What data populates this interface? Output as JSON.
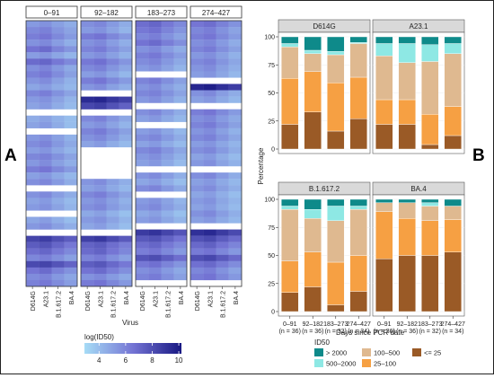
{
  "panel_letters": {
    "left": "A",
    "right": "B"
  },
  "chart_data": [
    {
      "type": "heatmap",
      "panels": [
        "0–91",
        "92–182",
        "183–273",
        "274–427"
      ],
      "columns": [
        "D614G",
        "A23.1",
        "B.1.617.2",
        "BA.4"
      ],
      "xlabel": "Virus",
      "legend_title": "log(ID50)",
      "colorbar_ticks": [
        4,
        6,
        8,
        10
      ],
      "colorbar_range": [
        2.9,
        10.2
      ],
      "colors": {
        "low": "#a6dcf6",
        "mid": "#7474d4",
        "high": "#171782"
      },
      "notes": "White rows = missing values",
      "values": [
        [
          [
            5.2,
            5.5,
            5.0,
            4.6
          ],
          [
            5.8,
            6.1,
            5.4,
            4.9
          ],
          [
            6.2,
            6.5,
            5.8,
            5.2
          ],
          [
            5.5,
            5.8,
            5.1,
            4.5
          ],
          [
            6.6,
            6.9,
            6.0,
            5.4
          ],
          [
            5.1,
            5.4,
            4.8,
            4.3
          ],
          [
            6.9,
            7.1,
            6.4,
            5.8
          ],
          [
            5.6,
            6.0,
            5.3,
            4.7
          ],
          [
            6.1,
            6.4,
            5.7,
            5.0
          ],
          [
            5.4,
            5.7,
            5.0,
            4.4
          ],
          [
            4.8,
            5.1,
            4.6,
            4.2
          ],
          [
            5.9,
            6.2,
            5.5,
            4.9
          ],
          [
            5.2,
            5.5,
            4.9,
            4.3
          ],
          [
            4.9,
            5.2,
            4.6,
            4.1
          ],
          null,
          [
            4.6,
            4.9,
            4.4,
            4.0
          ],
          [
            4.9,
            5.2,
            4.6,
            4.0
          ],
          null,
          [
            5.3,
            5.6,
            5.0,
            4.4
          ],
          [
            5.7,
            6.0,
            5.3,
            4.7
          ],
          [
            5.1,
            5.4,
            4.8,
            4.3
          ],
          [
            5.9,
            6.1,
            5.5,
            4.9
          ],
          [
            5.3,
            5.7,
            5.0,
            4.5
          ],
          [
            6.2,
            6.5,
            5.8,
            5.2
          ],
          [
            5.0,
            5.3,
            4.7,
            4.2
          ],
          [
            5.6,
            5.9,
            5.2,
            4.6
          ],
          null,
          [
            5.5,
            5.8,
            5.1,
            4.6
          ],
          [
            4.9,
            5.2,
            4.6,
            4.1
          ],
          [
            5.2,
            5.5,
            4.9,
            4.3
          ],
          null,
          [
            4.8,
            5.1,
            4.5,
            4.0
          ],
          [
            5.3,
            5.6,
            5.0,
            4.5
          ],
          null,
          [
            8.4,
            8.7,
            8.0,
            7.5
          ],
          [
            7.5,
            7.8,
            7.1,
            6.4
          ],
          [
            6.8,
            7.1,
            6.4,
            5.8
          ],
          [
            5.9,
            6.2,
            5.6,
            5.0
          ],
          [
            8.2,
            8.4,
            7.8,
            7.2
          ],
          [
            6.5,
            6.9,
            6.1,
            5.5
          ],
          [
            5.7,
            6.0,
            5.3,
            4.8
          ],
          [
            6.1,
            6.4,
            5.7,
            5.1
          ]
        ],
        [
          [
            5.6,
            5.9,
            5.2,
            4.6
          ],
          [
            5.2,
            5.5,
            4.9,
            4.3
          ],
          [
            6.3,
            6.6,
            5.9,
            5.3
          ],
          [
            5.5,
            5.8,
            5.1,
            4.5
          ],
          [
            6.0,
            6.3,
            5.6,
            5.0
          ],
          [
            5.3,
            5.6,
            5.0,
            4.4
          ],
          [
            6.4,
            6.7,
            6.0,
            5.4
          ],
          [
            5.8,
            6.1,
            5.4,
            4.8
          ],
          [
            5.1,
            5.4,
            4.8,
            4.2
          ],
          [
            6.2,
            6.5,
            5.8,
            5.2
          ],
          [
            5.4,
            5.7,
            5.0,
            4.5
          ],
          null,
          [
            9.4,
            9.6,
            9.0,
            8.6
          ],
          [
            8.3,
            8.6,
            7.9,
            7.3
          ],
          null,
          [
            5.8,
            6.1,
            5.4,
            4.8
          ],
          [
            5.2,
            5.5,
            4.9,
            4.3
          ],
          [
            6.0,
            6.3,
            5.6,
            5.0
          ],
          [
            5.5,
            5.8,
            5.2,
            4.6
          ],
          [
            4.9,
            5.2,
            4.6,
            4.1
          ],
          null,
          null,
          null,
          null,
          null,
          [
            5.4,
            5.7,
            5.0,
            4.5
          ],
          [
            5.0,
            5.3,
            4.7,
            4.2
          ],
          [
            5.9,
            6.2,
            5.5,
            4.9
          ],
          [
            5.3,
            5.6,
            5.0,
            4.4
          ],
          [
            5.6,
            5.9,
            5.2,
            4.7
          ],
          [
            4.7,
            5.0,
            4.4,
            3.9
          ],
          [
            5.2,
            5.5,
            4.9,
            4.3
          ],
          [
            4.8,
            5.1,
            4.5,
            4.0
          ],
          null,
          [
            8.6,
            8.9,
            8.2,
            7.6
          ],
          [
            7.2,
            7.5,
            6.8,
            6.2
          ],
          [
            6.9,
            7.2,
            6.5,
            5.9
          ],
          [
            6.0,
            6.3,
            5.6,
            5.0
          ],
          [
            7.4,
            7.7,
            7.0,
            6.4
          ],
          [
            6.6,
            6.9,
            6.2,
            5.6
          ],
          [
            5.5,
            5.8,
            5.2,
            4.7
          ],
          [
            6.3,
            6.6,
            5.9,
            5.3
          ]
        ],
        [
          [
            6.8,
            7.1,
            6.4,
            5.8
          ],
          [
            6.4,
            6.7,
            6.0,
            5.4
          ],
          [
            5.9,
            6.2,
            5.5,
            4.9
          ],
          [
            6.6,
            6.9,
            6.2,
            5.6
          ],
          [
            5.5,
            5.8,
            5.1,
            4.6
          ],
          [
            6.1,
            6.4,
            5.7,
            5.1
          ],
          [
            5.7,
            6.0,
            5.3,
            4.7
          ],
          [
            5.2,
            5.5,
            4.9,
            4.3
          ],
          null,
          [
            6.0,
            6.3,
            5.6,
            5.0
          ],
          [
            5.4,
            5.7,
            5.0,
            4.5
          ],
          [
            5.9,
            6.1,
            5.5,
            4.9
          ],
          [
            5.3,
            5.6,
            5.0,
            4.4
          ],
          null,
          [
            5.6,
            5.9,
            5.2,
            4.6
          ],
          [
            5.0,
            5.3,
            4.7,
            4.2
          ],
          null,
          [
            5.1,
            5.4,
            4.8,
            4.2
          ],
          [
            5.6,
            5.9,
            5.2,
            4.6
          ],
          [
            4.9,
            5.2,
            4.6,
            4.1
          ],
          [
            5.8,
            6.1,
            5.4,
            4.8
          ],
          [
            5.3,
            5.6,
            5.0,
            4.4
          ],
          [
            5.0,
            5.3,
            4.7,
            4.1
          ],
          null,
          [
            5.4,
            5.7,
            5.1,
            4.5
          ],
          [
            4.8,
            5.1,
            4.5,
            4.0
          ],
          [
            5.7,
            6.0,
            5.3,
            4.7
          ],
          null,
          [
            5.2,
            5.5,
            4.9,
            4.3
          ],
          [
            5.5,
            5.8,
            5.1,
            4.6
          ],
          [
            4.7,
            5.0,
            4.4,
            3.9
          ],
          [
            5.1,
            5.4,
            4.8,
            4.3
          ],
          null,
          [
            8.8,
            9.1,
            8.4,
            7.8
          ],
          [
            7.6,
            7.9,
            7.2,
            6.6
          ],
          [
            6.8,
            7.1,
            6.4,
            5.8
          ],
          [
            6.2,
            6.5,
            5.8,
            5.2
          ],
          [
            7.8,
            8.1,
            7.4,
            6.8
          ],
          [
            6.4,
            6.7,
            6.0,
            5.4
          ],
          [
            5.6,
            5.9,
            5.2,
            4.7
          ],
          [
            6.0,
            6.3,
            5.6,
            5.0
          ]
        ],
        [
          [
            6.5,
            6.8,
            6.1,
            5.5
          ],
          [
            5.9,
            6.2,
            5.5,
            4.9
          ],
          [
            6.2,
            6.5,
            5.8,
            5.2
          ],
          [
            5.6,
            5.9,
            5.2,
            4.6
          ],
          [
            6.0,
            6.3,
            5.6,
            5.0
          ],
          [
            5.3,
            5.6,
            5.0,
            4.4
          ],
          [
            5.8,
            6.1,
            5.4,
            4.8
          ],
          [
            5.4,
            5.7,
            5.0,
            4.5
          ],
          [
            5.1,
            5.4,
            4.8,
            4.2
          ],
          null,
          [
            9.6,
            9.9,
            9.2,
            8.7
          ],
          [
            5.5,
            5.8,
            5.1,
            4.6
          ],
          [
            5.0,
            5.3,
            4.7,
            4.2
          ],
          null,
          [
            6.2,
            6.5,
            5.8,
            5.2
          ],
          [
            5.6,
            5.9,
            5.2,
            4.7
          ],
          [
            6.0,
            6.3,
            5.6,
            5.0
          ],
          [
            5.4,
            5.7,
            5.0,
            4.4
          ],
          [
            5.8,
            6.1,
            5.4,
            4.8
          ],
          [
            5.1,
            5.4,
            4.8,
            4.3
          ],
          [
            5.6,
            5.9,
            5.2,
            4.6
          ],
          [
            4.9,
            5.2,
            4.6,
            4.1
          ],
          [
            5.3,
            5.6,
            4.9,
            4.4
          ],
          null,
          [
            5.6,
            5.9,
            5.2,
            4.6
          ],
          [
            5.0,
            5.3,
            4.7,
            4.2
          ],
          [
            5.4,
            5.7,
            5.0,
            4.5
          ],
          [
            4.8,
            5.1,
            4.5,
            4.0
          ],
          [
            5.2,
            5.5,
            4.8,
            4.3
          ],
          [
            4.9,
            5.2,
            4.6,
            4.1
          ],
          [
            5.5,
            5.8,
            5.1,
            4.5
          ],
          [
            5.0,
            5.3,
            4.7,
            4.2
          ],
          null,
          [
            9.2,
            9.5,
            8.8,
            8.2
          ],
          [
            7.9,
            8.2,
            7.5,
            6.9
          ],
          [
            7.0,
            7.3,
            6.6,
            6.0
          ],
          [
            6.3,
            6.6,
            5.9,
            5.3
          ],
          [
            8.0,
            8.3,
            7.6,
            7.0
          ],
          [
            6.7,
            7.0,
            6.3,
            5.7
          ],
          [
            5.9,
            6.2,
            5.5,
            4.9
          ],
          [
            6.3,
            6.6,
            5.9,
            5.3
          ]
        ]
      ]
    },
    {
      "type": "bar",
      "stacked": true,
      "panels": [
        "D614G",
        "A23.1",
        "B.1.617.2",
        "BA.4"
      ],
      "categories": [
        "0–91",
        "92–182",
        "183–273",
        "274–427"
      ],
      "category_n": [
        "(n = 36)",
        "(n = 36)",
        "(n = 32)",
        "(n = 34)"
      ],
      "xlabel": "Days since PCR date",
      "ylabel": "Percentage",
      "ylim": [
        0,
        100
      ],
      "yticks": [
        0,
        25,
        50,
        75,
        100
      ],
      "legend_title": "ID50",
      "legend_order": [
        "> 2000",
        "100–500",
        "<= 25",
        "500–2000",
        "25–100"
      ],
      "stack_order": [
        "<= 25",
        "25–100",
        "100–500",
        "500–2000",
        "> 2000"
      ],
      "stack_colors": {
        "> 2000": "#0e8a8a",
        "500–2000": "#8ee8e4",
        "100–500": "#dfb990",
        "25–100": "#f6a043",
        "<= 25": "#9a5a26"
      },
      "series": {
        "D614G": [
          {
            "name": "<= 25",
            "values": [
              22,
              33,
              16,
              27
            ]
          },
          {
            "name": "25–100",
            "values": [
              41,
              36,
              43,
              37
            ]
          },
          {
            "name": "100–500",
            "values": [
              28,
              16,
              25,
              30
            ]
          },
          {
            "name": "500–2000",
            "values": [
              3,
              3,
              3,
              1
            ]
          },
          {
            "name": "> 2000",
            "values": [
              6,
              12,
              13,
              5
            ]
          }
        ],
        "A23.1": [
          {
            "name": "<= 25",
            "values": [
              22,
              22,
              4,
              12
            ]
          },
          {
            "name": "25–100",
            "values": [
              22,
              22,
              27,
              26
            ]
          },
          {
            "name": "100–500",
            "values": [
              39,
              33,
              47,
              47
            ]
          },
          {
            "name": "500–2000",
            "values": [
              11,
              17,
              15,
              9
            ]
          },
          {
            "name": "> 2000",
            "values": [
              6,
              6,
              7,
              6
            ]
          }
        ],
        "B.1.617.2": [
          {
            "name": "<= 25",
            "values": [
              17,
              22,
              6,
              18
            ]
          },
          {
            "name": "25–100",
            "values": [
              28,
              31,
              38,
              32
            ]
          },
          {
            "name": "100–500",
            "values": [
              46,
              30,
              37,
              41
            ]
          },
          {
            "name": "500–2000",
            "values": [
              3,
              8,
              13,
              3
            ]
          },
          {
            "name": "> 2000",
            "values": [
              6,
              9,
              6,
              6
            ]
          }
        ],
        "BA.4": [
          {
            "name": "<= 25",
            "values": [
              47,
              50,
              50,
              53
            ]
          },
          {
            "name": "25–100",
            "values": [
              42,
              33,
              31,
              29
            ]
          },
          {
            "name": "100–500",
            "values": [
              8,
              14,
              13,
              12
            ]
          },
          {
            "name": "500–2000",
            "values": [
              0,
              0,
              3,
              0
            ]
          },
          {
            "name": "> 2000",
            "values": [
              3,
              3,
              3,
              6
            ]
          }
        ]
      }
    }
  ]
}
